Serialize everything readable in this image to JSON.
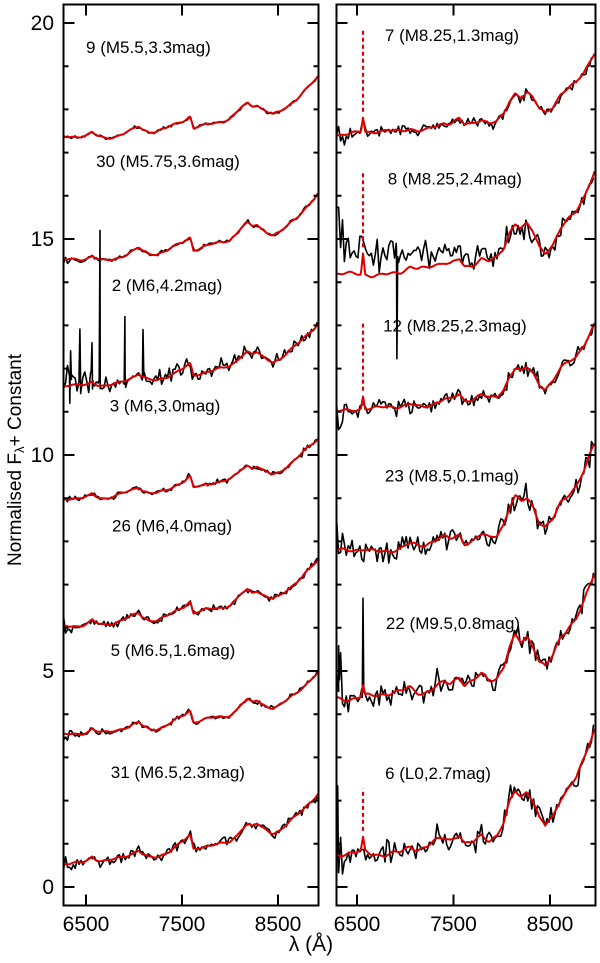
{
  "figure": {
    "background": "#ffffff",
    "colors": {
      "observed": "#000000",
      "model": "#dc0000",
      "axis": "#000000",
      "text": "#000000"
    }
  },
  "axis": {
    "ylabel": {
      "pre": "Normalised F",
      "sub": "λ",
      "post": "+ Constant"
    },
    "xlabel": {
      "sym": "λ",
      "unit": " (Å)"
    },
    "yticks": [
      0,
      5,
      10,
      15,
      20
    ],
    "ytick_minor_step": 1,
    "xticks": [
      6500,
      7500,
      8500
    ],
    "flux_lim": [
      -0.43,
      20.43
    ],
    "left_panel_lambda": [
      6266,
      8922
    ],
    "right_panel_lambda": [
      6288,
      8971
    ]
  },
  "chart_data": {
    "type": "line",
    "title": "",
    "xlabel": "λ (Å)",
    "ylabel": "Normalised Fλ + Constant",
    "xlim": [
      6266,
      8971
    ],
    "ylim": [
      -0.43,
      20.43
    ],
    "grid": false,
    "legend": "none",
    "series_style": {
      "observed": "black solid",
      "model": "red solid",
      "halpha_emission": "red dashed vertical spike at 6563 Å"
    },
    "templates": {
      "early": [
        [
          6266,
          0.055
        ],
        [
          6380,
          0.06
        ],
        [
          6450,
          0.07
        ],
        [
          6500,
          0.085
        ],
        [
          6540,
          0.11
        ],
        [
          6563,
          0.135
        ],
        [
          6590,
          0.11
        ],
        [
          6640,
          0.08
        ],
        [
          6700,
          0.065
        ],
        [
          6760,
          0.075
        ],
        [
          6830,
          0.095
        ],
        [
          6900,
          0.125
        ],
        [
          6980,
          0.165
        ],
        [
          7050,
          0.21
        ],
        [
          7090,
          0.165
        ],
        [
          7160,
          0.125
        ],
        [
          7240,
          0.135
        ],
        [
          7330,
          0.18
        ],
        [
          7430,
          0.25
        ],
        [
          7520,
          0.31
        ],
        [
          7585,
          0.37
        ],
        [
          7620,
          0.205
        ],
        [
          7680,
          0.225
        ],
        [
          7760,
          0.25
        ],
        [
          7850,
          0.27
        ],
        [
          7930,
          0.285
        ],
        [
          8000,
          0.315
        ],
        [
          8060,
          0.38
        ],
        [
          8120,
          0.475
        ],
        [
          8180,
          0.53
        ],
        [
          8230,
          0.495
        ],
        [
          8280,
          0.525
        ],
        [
          8330,
          0.47
        ],
        [
          8390,
          0.43
        ],
        [
          8450,
          0.4
        ],
        [
          8520,
          0.43
        ],
        [
          8600,
          0.51
        ],
        [
          8680,
          0.59
        ],
        [
          8760,
          0.69
        ],
        [
          8840,
          0.79
        ],
        [
          8900,
          0.87
        ],
        [
          8950,
          0.95
        ],
        [
          9000,
          1.0
        ]
      ],
      "late": [
        [
          6288,
          0.04
        ],
        [
          6400,
          0.045
        ],
        [
          6480,
          0.05
        ],
        [
          6563,
          0.06
        ],
        [
          6650,
          0.05
        ],
        [
          6750,
          0.055
        ],
        [
          6850,
          0.065
        ],
        [
          6950,
          0.075
        ],
        [
          7050,
          0.11
        ],
        [
          7130,
          0.085
        ],
        [
          7210,
          0.09
        ],
        [
          7300,
          0.125
        ],
        [
          7400,
          0.16
        ],
        [
          7470,
          0.15
        ],
        [
          7560,
          0.195
        ],
        [
          7615,
          0.125
        ],
        [
          7700,
          0.145
        ],
        [
          7790,
          0.2
        ],
        [
          7870,
          0.165
        ],
        [
          7950,
          0.185
        ],
        [
          8020,
          0.27
        ],
        [
          8080,
          0.41
        ],
        [
          8140,
          0.5
        ],
        [
          8200,
          0.455
        ],
        [
          8260,
          0.495
        ],
        [
          8320,
          0.435
        ],
        [
          8390,
          0.3
        ],
        [
          8450,
          0.26
        ],
        [
          8530,
          0.33
        ],
        [
          8610,
          0.47
        ],
        [
          8690,
          0.54
        ],
        [
          8770,
          0.61
        ],
        [
          8850,
          0.73
        ],
        [
          8910,
          0.85
        ],
        [
          8960,
          0.95
        ],
        [
          9000,
          1.0
        ]
      ]
    },
    "panels": [
      {
        "name": "left",
        "spectra": [
          {
            "id": "9",
            "label": "9 (M5.5,3.3mag)",
            "label_lambda": 7150,
            "label_flux": 19.45,
            "type": "early",
            "base": 17.25,
            "amp": 1.65,
            "noise": [
              0.025,
              0.02
            ],
            "seed": 11
          },
          {
            "id": "30",
            "label": "30 (M5.75,3.6mag)",
            "label_lambda": 7354,
            "label_flux": 16.8,
            "type": "early",
            "base": 14.4,
            "amp": 1.8,
            "noise": [
              0.035,
              0.03
            ],
            "seed": 22
          },
          {
            "id": "2",
            "label": "2 (M6,4.2mag)",
            "label_lambda": 7344,
            "label_flux": 13.93,
            "type": "early",
            "base": 11.5,
            "amp": 1.7,
            "noise": [
              0.2,
              0.07
            ],
            "seed": 33,
            "black_spikes": [
              [
                6340,
                0.8
              ],
              [
                6437,
                1.3
              ],
              [
                6563,
                0.9
              ],
              [
                6646,
                3.6
              ],
              [
                6906,
                1.5
              ],
              [
                7094,
                1.1
              ]
            ]
          },
          {
            "id": "3",
            "label": "3 (M6,3.0mag)",
            "label_lambda": 7323,
            "label_flux": 11.15,
            "type": "early",
            "base": 8.9,
            "amp": 1.65,
            "noise": [
              0.05,
              0.05
            ],
            "seed": 44
          },
          {
            "id": "26",
            "label": "26 (M6,4.0mag)",
            "label_lambda": 7396,
            "label_flux": 8.37,
            "type": "early",
            "base": 5.95,
            "amp": 1.8,
            "noise": [
              0.06,
              0.06
            ],
            "seed": 55
          },
          {
            "id": "5",
            "label": "5 (M6.5,1.6mag)",
            "label_lambda": 7406,
            "label_flux": 5.49,
            "type": "early",
            "base": 3.45,
            "amp": 1.7,
            "noise": [
              0.045,
              0.04
            ],
            "seed": 66
          },
          {
            "id": "31",
            "label": "31 (M6.5,2.3mag)",
            "label_lambda": 7458,
            "label_flux": 2.66,
            "type": "early",
            "base": 0.45,
            "amp": 1.95,
            "noise": [
              0.09,
              0.08
            ],
            "seed": 77
          }
        ]
      },
      {
        "name": "right",
        "spectra": [
          {
            "id": "7",
            "label": "7 (M8.25,1.3mag)",
            "label_lambda": 7484,
            "label_flux": 19.72,
            "type": "late",
            "base": 17.35,
            "amp": 2.1,
            "noise": [
              0.1,
              0.09
            ],
            "seed": 101,
            "model_spike": [
              6563,
              0.35
            ],
            "dashed_spike": [
              6563,
              2.0
            ]
          },
          {
            "id": "8",
            "label": "8 (M8.25,2.4mag)",
            "label_lambda": 7515,
            "label_flux": 16.4,
            "type": "late",
            "base": 14.05,
            "amp": 2.6,
            "noise": [
              0.28,
              0.17
            ],
            "seed": 102,
            "model_spike": [
              6563,
              0.5
            ],
            "dashed_spike": [
              6563,
              1.9
            ],
            "black_bias": [
              [
                6288,
                0.55
              ],
              [
                7000,
                0.45
              ],
              [
                7450,
                0.3
              ],
              [
                7900,
                0.05
              ],
              [
                8100,
                0
              ],
              [
                8971,
                0
              ]
            ],
            "black_spikes": [
              [
                6914,
                -2.45
              ]
            ]
          },
          {
            "id": "12",
            "label": "12 (M8.25,2.3mag)",
            "label_lambda": 7515,
            "label_flux": 13.0,
            "type": "late",
            "base": 10.95,
            "amp": 2.2,
            "noise": [
              0.14,
              0.12
            ],
            "seed": 103,
            "model_spike": [
              6563,
              0.3
            ],
            "dashed_spike": [
              6563,
              1.7
            ]
          },
          {
            "id": "23",
            "label": "23 (M8.5,0.1mag)",
            "label_lambda": 7484,
            "label_flux": 9.53,
            "type": "late",
            "base": 7.65,
            "amp": 2.7,
            "noise": [
              0.2,
              0.16
            ],
            "seed": 104
          },
          {
            "id": "22",
            "label": "22 (M9.5,0.8mag)",
            "label_lambda": 7495,
            "label_flux": 6.11,
            "type": "late",
            "base": 4.25,
            "amp": 3.2,
            "noise": [
              0.22,
              0.16
            ],
            "seed": 105,
            "model_spike": [
              6563,
              0.25
            ],
            "black_spikes": [
              [
                6563,
                2.0
              ],
              [
                6310,
                1.2
              ]
            ]
          },
          {
            "id": "6",
            "label": "6 (L0,2.7mag)",
            "label_lambda": 7339,
            "label_flux": 2.64,
            "type": "late",
            "base": 0.6,
            "amp": 3.2,
            "noise": [
              0.22,
              0.18
            ],
            "seed": 106,
            "model_spike": [
              6563,
              0.3
            ],
            "dashed_spike": [
              6563,
              1.1
            ],
            "black_spikes": [
              [
                6300,
                1.6
              ]
            ]
          }
        ]
      }
    ]
  }
}
